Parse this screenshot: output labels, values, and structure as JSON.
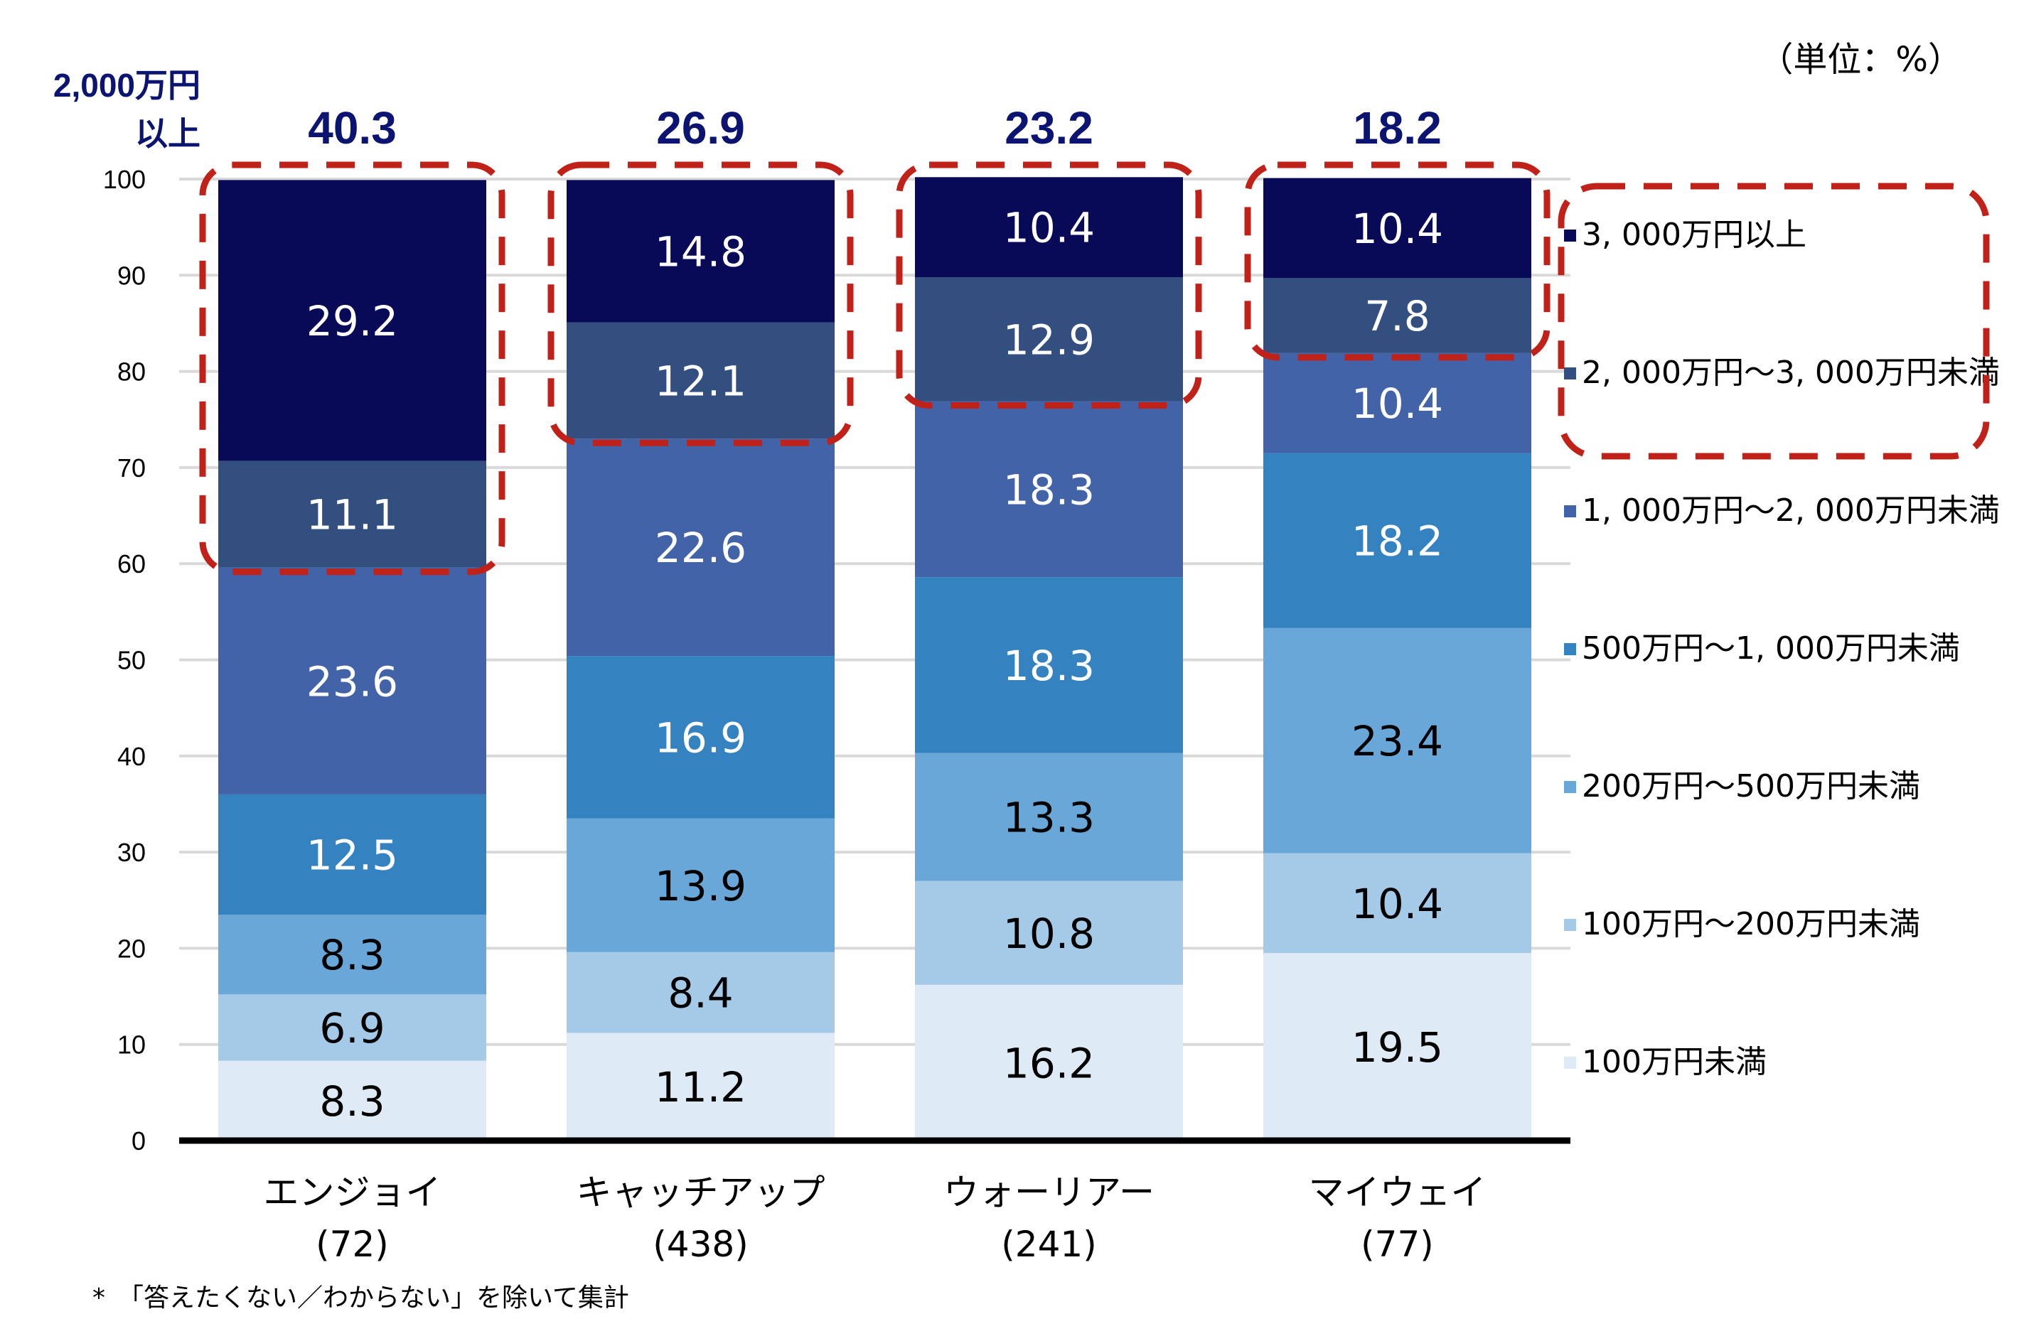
{
  "chart_data": {
    "type": "bar",
    "stacked": true,
    "unit_label": "（単位：%）",
    "ylim": [
      0,
      100
    ],
    "yticks": [
      0,
      10,
      20,
      30,
      40,
      50,
      60,
      70,
      80,
      90,
      100
    ],
    "grid": true,
    "legend_position": "right",
    "categories": [
      "エンジョイ",
      "キャッチアップ",
      "ウォーリアー",
      "マイウェイ"
    ],
    "category_counts": [
      "(72)",
      "(438)",
      "(241)",
      "(77)"
    ],
    "series": [
      {
        "name": "100万円未満",
        "color": "#deeaf6",
        "label_color": "#000000",
        "values": [
          8.3,
          11.2,
          16.2,
          19.5
        ]
      },
      {
        "name": "100万円～200万円未満",
        "color": "#a5cae8",
        "label_color": "#000000",
        "values": [
          6.9,
          8.4,
          10.8,
          10.4
        ]
      },
      {
        "name": "200万円～500万円未満",
        "color": "#68a7d8",
        "label_color": "#000000",
        "values": [
          8.3,
          13.9,
          13.3,
          23.4
        ]
      },
      {
        "name": "500万円～1,000万円未満",
        "color": "#3482c0",
        "label_color": "#ffffff",
        "values": [
          12.5,
          16.9,
          18.3,
          18.2
        ]
      },
      {
        "name": "1,000万円～2,000万円未満",
        "color": "#4263a8",
        "label_color": "#ffffff",
        "values": [
          23.6,
          22.6,
          18.3,
          10.4
        ]
      },
      {
        "name": "2,000万円～3,000万円未満",
        "color": "#334f80",
        "label_color": "#ffffff",
        "values": [
          11.1,
          12.1,
          12.9,
          7.8
        ]
      },
      {
        "name": "3,000万円以上",
        "color": "#080a57",
        "label_color": "#ffffff",
        "values": [
          29.2,
          14.8,
          10.4,
          10.4
        ]
      }
    ],
    "legend_labels": [
      "3, 000万円以上",
      "2, 000万円～3, 000万円未満",
      "1, 000万円～2, 000万円未満",
      "500万円～1, 000万円未満",
      "200万円～500万円未満",
      "100万円～200万円未満",
      "100万円未満"
    ],
    "highlight": {
      "label_line1": "2,000万円",
      "label_line2": "以上",
      "totals": [
        "40.3",
        "26.9",
        "23.2",
        "18.2"
      ],
      "accent_color": "#c0221a",
      "total_color": "#0b1470"
    },
    "footnote": "*　「答えたくない／わからない」を除いて集計"
  }
}
